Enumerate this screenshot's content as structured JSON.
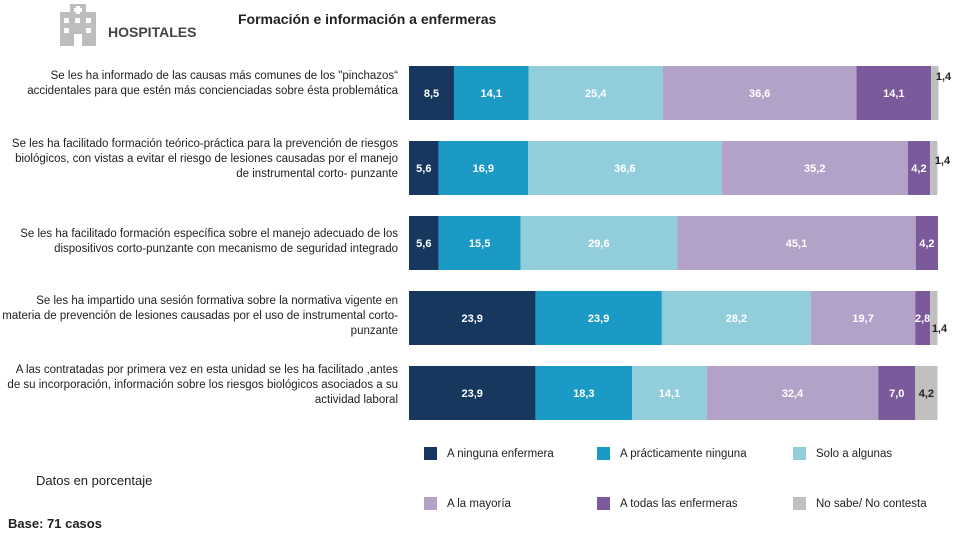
{
  "header": {
    "section_label": "HOSPITALES",
    "logo_icon": "hospital-icon"
  },
  "chart_data": {
    "type": "bar",
    "orientation": "horizontal",
    "stacked": true,
    "title": "Formación e información a enfermeras",
    "categories": [
      "Se les ha informado de las causas más comunes de los \"pinchazos“ accidentales para que estén más concienciadas sobre ésta problemática",
      "Se les ha facilitado formación teórico-práctica para la prevención de riesgos biológicos, con vistas a evitar el riesgo de lesiones causadas por el manejo de instrumental corto- punzante",
      "Se les ha facilitado formación específica sobre el manejo adecuado de los dispositivos corto-punzante con mecanismo de seguridad integrado",
      "Se les ha impartido una sesión formativa sobre la normativa vigente en materia de prevención de lesiones causadas por el uso de instrumental corto-punzante",
      "A las contratadas por primera vez en esta unidad se les ha facilitado ,antes de su incorporación, información sobre los riesgos biológicos asociados a su actividad laboral"
    ],
    "series": [
      {
        "name": "A ninguna enfermera",
        "color": "#17375e",
        "values": [
          8.5,
          5.6,
          5.6,
          23.9,
          23.9
        ],
        "labels": [
          "8,5",
          "5,6",
          "5,6",
          "23,9",
          "23,9"
        ]
      },
      {
        "name": "A prácticamente ninguna",
        "color": "#1a9ac4",
        "values": [
          14.1,
          16.9,
          15.5,
          23.9,
          18.3
        ],
        "labels": [
          "14,1",
          "16,9",
          "15,5",
          "23,9",
          "18,3"
        ]
      },
      {
        "name": "Solo a algunas",
        "color": "#92cddc",
        "values": [
          25.4,
          36.6,
          29.6,
          28.2,
          14.1
        ],
        "labels": [
          "25,4",
          "36,6",
          "29,6",
          "28,2",
          "14,1"
        ]
      },
      {
        "name": "A la mayoría",
        "color": "#b3a2c7",
        "values": [
          36.6,
          35.2,
          45.1,
          19.7,
          32.4
        ],
        "labels": [
          "36,6",
          "35,2",
          "45,1",
          "19,7",
          "32,4"
        ]
      },
      {
        "name": "A todas las enfermeras",
        "color": "#7a5a9a",
        "values": [
          14.1,
          4.2,
          4.2,
          2.8,
          7.0
        ],
        "labels": [
          "14,1",
          "4,2",
          "4,2",
          "2,8",
          "7,0"
        ]
      },
      {
        "name": "No sabe/ No contesta",
        "color": "#bfbfbf",
        "values": [
          1.4,
          1.4,
          0,
          1.4,
          4.2
        ],
        "labels": [
          "1,4",
          "1,4",
          "",
          "1,4",
          "4,2"
        ]
      }
    ],
    "xlim": [
      0,
      100
    ],
    "grid": false,
    "legend_position": "bottom"
  },
  "footer": {
    "units_note": "Datos en porcentaje",
    "base_note": "Base: 71 casos"
  }
}
